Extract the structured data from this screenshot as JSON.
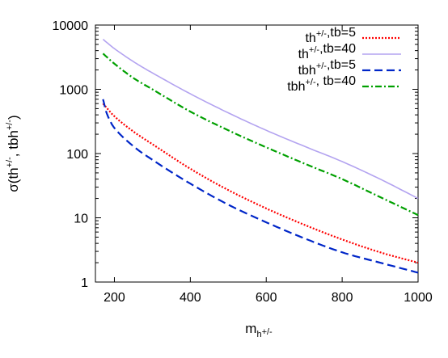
{
  "chart_data": {
    "type": "line",
    "xlabel": "m",
    "xlabel_sub": "h",
    "xlabel_sup": "+/-",
    "ylabel_parts": [
      {
        "t": "σ(th",
        "sup": false
      },
      {
        "t": "+/-",
        "sup": true
      },
      {
        "t": ", tbh",
        "sup": false
      },
      {
        "t": "+/-",
        "sup": true
      },
      {
        "t": ")",
        "sup": false
      }
    ],
    "xlim": [
      150,
      1000
    ],
    "ylim": [
      1,
      10000
    ],
    "y_scale": "log",
    "x_ticks": [
      200,
      400,
      600,
      800,
      1000
    ],
    "x_tick_labels": [
      "200",
      "400",
      "600",
      "800",
      "1000"
    ],
    "y_ticks": [
      1,
      10,
      100,
      1000,
      10000
    ],
    "y_tick_labels": [
      "1",
      "10",
      "100",
      "1000",
      "10000"
    ],
    "grid": false,
    "legend_position": "top-right",
    "series": [
      {
        "legend": [
          {
            "t": "th",
            "sup": false
          },
          {
            "t": "+/-",
            "sup": true
          },
          {
            "t": ",tb=5",
            "sup": false
          }
        ],
        "color": "#ff0000",
        "style": "dotted",
        "x": [
          170,
          200,
          250,
          300,
          400,
          500,
          600,
          700,
          800,
          900,
          1000
        ],
        "y": [
          600,
          380,
          220,
          140,
          58,
          27,
          14,
          7.8,
          4.6,
          2.9,
          2.0
        ]
      },
      {
        "legend": [
          {
            "t": "th",
            "sup": false
          },
          {
            "t": "+/-",
            "sup": true
          },
          {
            "t": ",tb=40",
            "sup": false
          }
        ],
        "color": "#b3a3f0",
        "style": "solid",
        "x": [
          170,
          200,
          250,
          300,
          400,
          500,
          600,
          700,
          800,
          900,
          1000
        ],
        "y": [
          6000,
          4300,
          2700,
          1800,
          850,
          430,
          230,
          130,
          75,
          40,
          20
        ]
      },
      {
        "legend": [
          {
            "t": "tbh",
            "sup": false
          },
          {
            "t": "+/-",
            "sup": true
          },
          {
            "t": ",tb=5",
            "sup": false
          }
        ],
        "color": "#0026c8",
        "style": "dashed",
        "x": [
          170,
          180,
          200,
          250,
          300,
          400,
          500,
          600,
          700,
          800,
          900,
          1000
        ],
        "y": [
          700,
          420,
          250,
          130,
          80,
          34,
          16,
          8.5,
          4.8,
          2.9,
          2.0,
          1.4
        ]
      },
      {
        "legend": [
          {
            "t": "tbh",
            "sup": false
          },
          {
            "t": "+/-",
            "sup": true
          },
          {
            "t": ", tb=40",
            "sup": false
          }
        ],
        "color": "#00a000",
        "style": "dashdot",
        "x": [
          170,
          200,
          250,
          300,
          400,
          500,
          600,
          700,
          800,
          900,
          1000
        ],
        "y": [
          3600,
          2500,
          1500,
          1000,
          450,
          230,
          125,
          70,
          40,
          21,
          11
        ]
      }
    ]
  }
}
